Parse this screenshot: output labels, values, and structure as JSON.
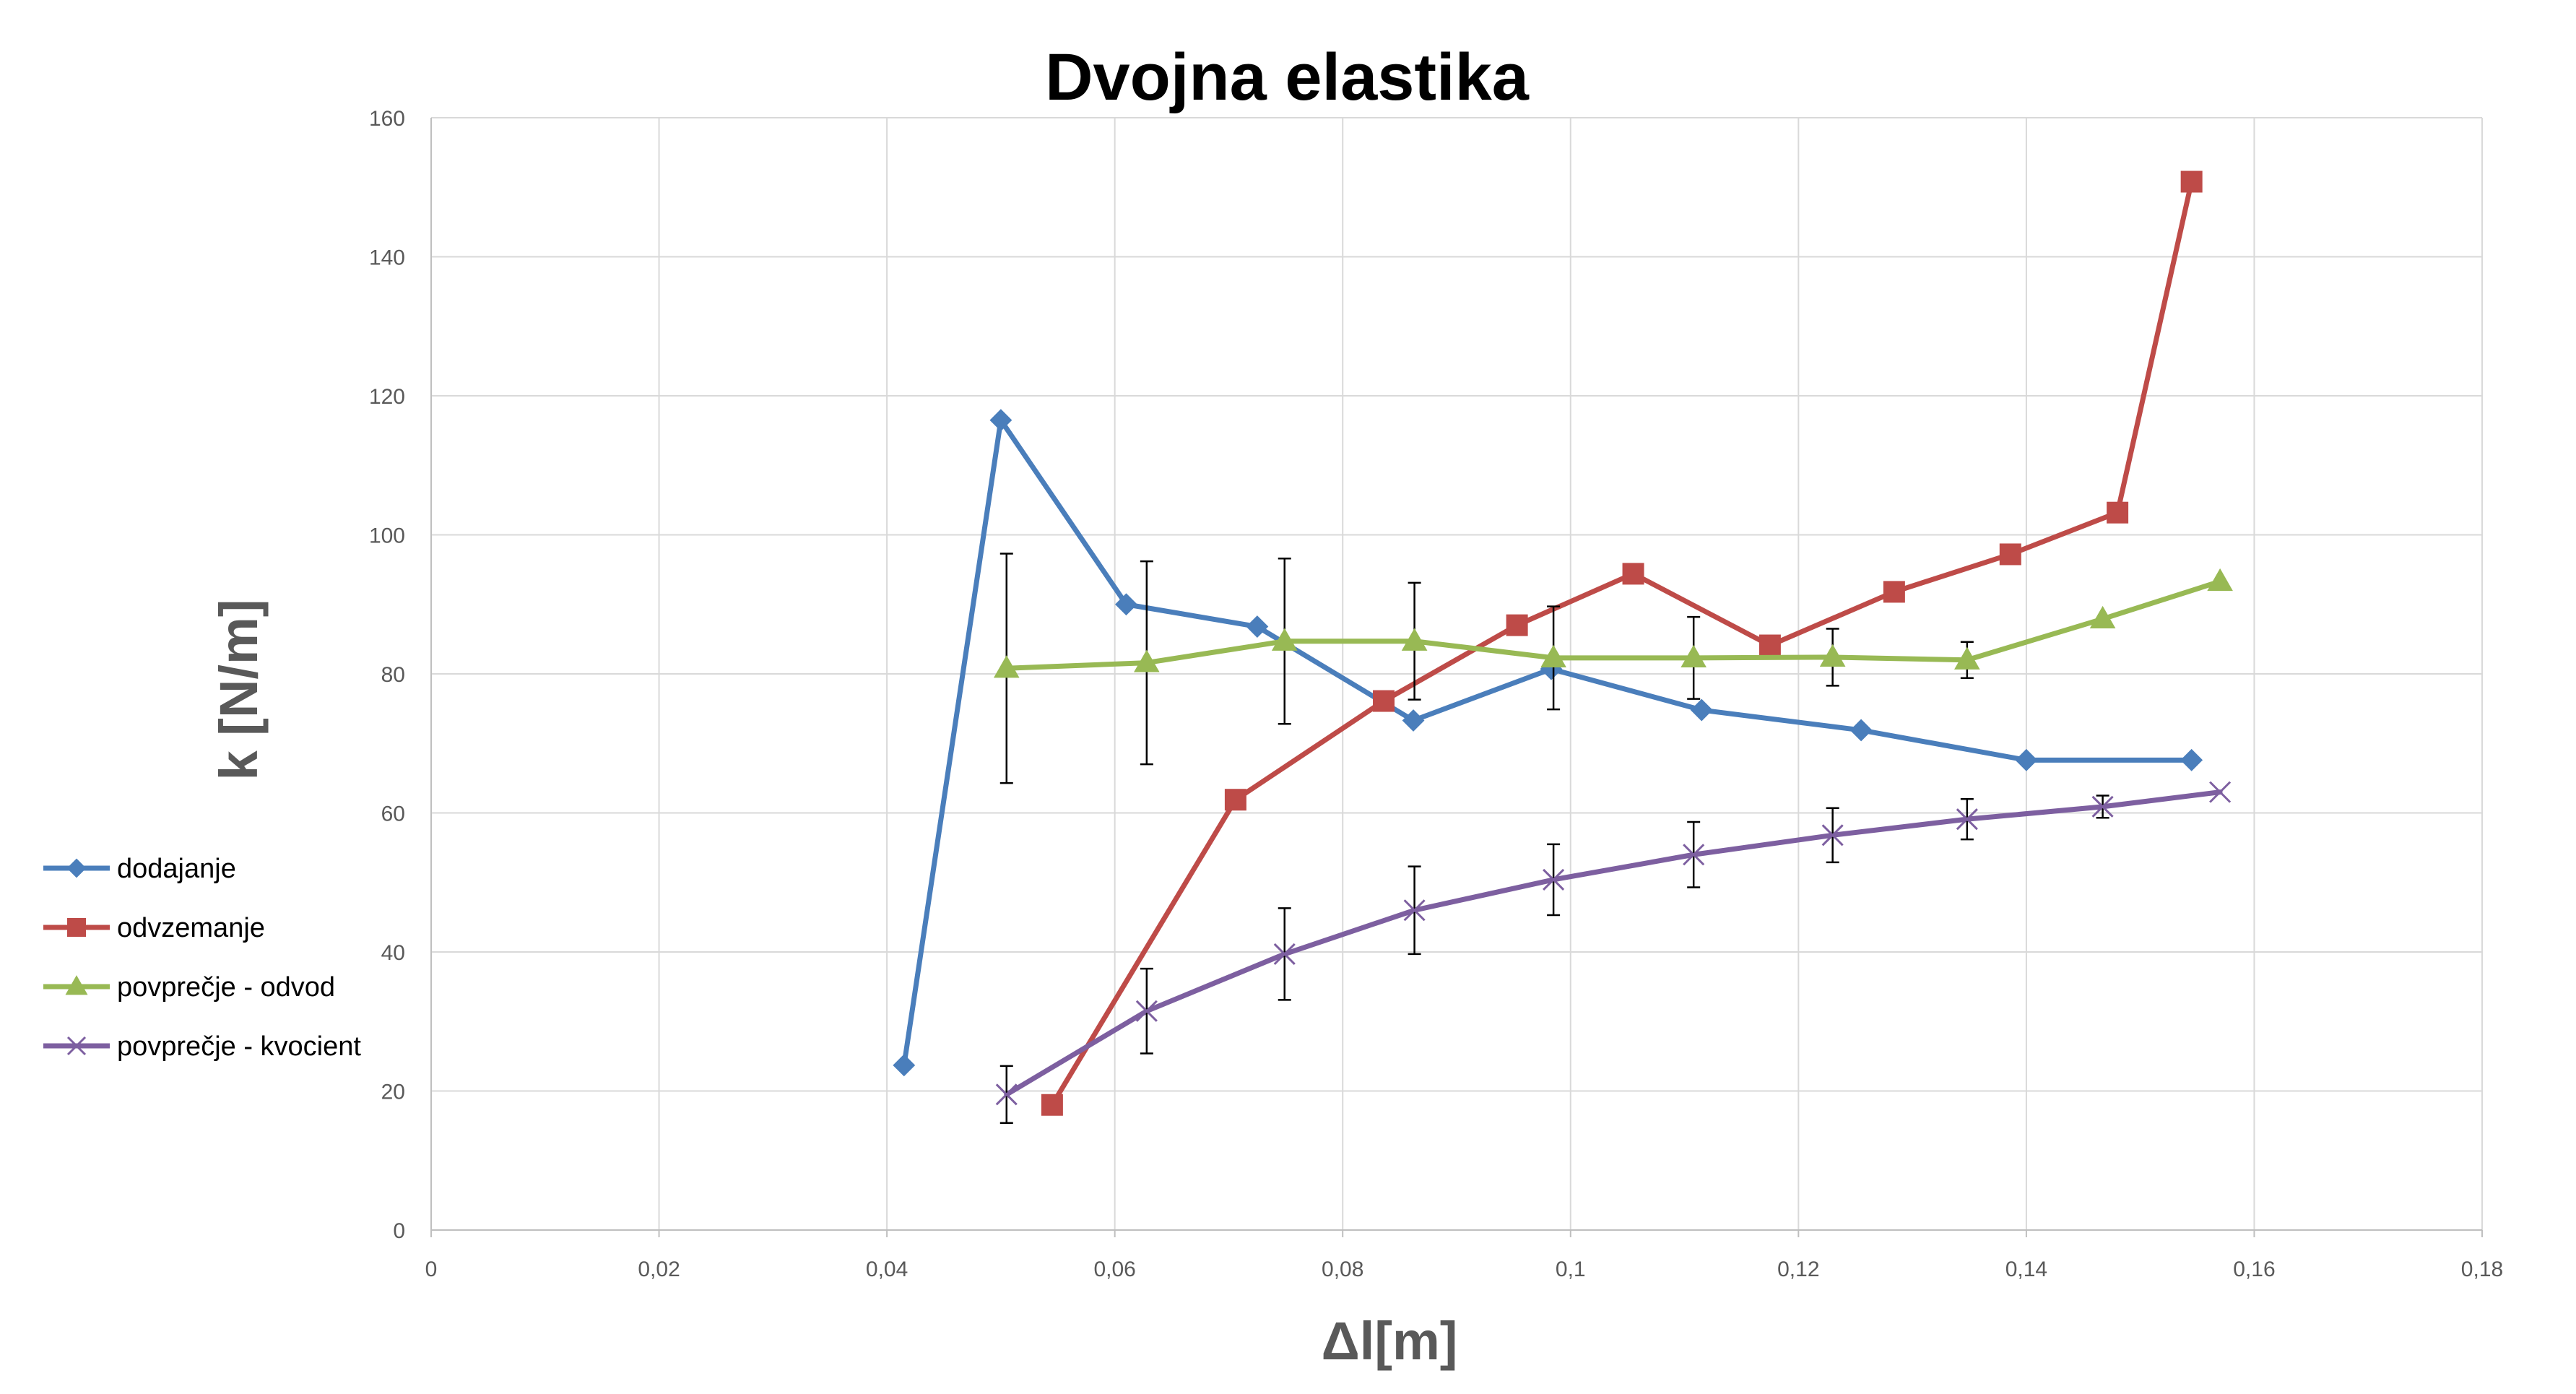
{
  "chart_data": {
    "type": "scatter",
    "title": "Dvojna elastika",
    "xlabel": "Δl[m]",
    "ylabel": "k [N/m]",
    "xlim": [
      0,
      0.18
    ],
    "ylim": [
      0,
      160
    ],
    "x_ticks": [
      0,
      0.02,
      0.04,
      0.06,
      0.08,
      0.1,
      0.12,
      0.14,
      0.16,
      0.18
    ],
    "x_tick_labels": [
      "0",
      "0,02",
      "0,04",
      "0,06",
      "0,08",
      "0,1",
      "0,12",
      "0,14",
      "0,16",
      "0,18"
    ],
    "y_ticks": [
      0,
      20,
      40,
      60,
      80,
      100,
      120,
      140,
      160
    ],
    "y_tick_labels": [
      "0",
      "20",
      "40",
      "60",
      "80",
      "100",
      "120",
      "140",
      "160"
    ],
    "grid": true,
    "legend_position": "left",
    "series": [
      {
        "name": "dodajanje",
        "color": "#4a7ebb",
        "marker": "diamond",
        "x": [
          0.0415,
          0.05,
          0.061,
          0.0725,
          0.0862,
          0.0983,
          0.1115,
          0.1255,
          0.14,
          0.1545
        ],
        "y": [
          23.7,
          116.5,
          90.0,
          86.8,
          73.3,
          80.7,
          74.8,
          71.9,
          67.6,
          67.6
        ]
      },
      {
        "name": "odvzemanje",
        "color": "#be4b48",
        "marker": "square",
        "x": [
          0.0545,
          0.0706,
          0.0836,
          0.0953,
          0.1055,
          0.1175,
          0.1284,
          0.1386,
          0.148,
          0.1545
        ],
        "y": [
          18.0,
          61.9,
          76.1,
          87.0,
          94.4,
          84.1,
          91.8,
          97.2,
          103.2,
          150.8
        ]
      },
      {
        "name": "povprečje - odvod",
        "color": "#98b954",
        "marker": "triangle",
        "x": [
          0.0505,
          0.0628,
          0.0749,
          0.0863,
          0.0985,
          0.1108,
          0.123,
          0.1348,
          0.1467,
          0.157
        ],
        "y": [
          80.8,
          81.6,
          84.7,
          84.7,
          82.3,
          82.3,
          82.4,
          82.0,
          87.9,
          93.3
        ],
        "error": [
          16.5,
          14.6,
          11.9,
          8.4,
          7.4,
          5.9,
          4.1,
          2.6,
          null,
          null
        ]
      },
      {
        "name": "povprečje - kvocient",
        "color": "#7d5fa0",
        "marker": "x",
        "x": [
          0.0505,
          0.0628,
          0.0749,
          0.0863,
          0.0985,
          0.1108,
          0.123,
          0.1348,
          0.1467,
          0.157
        ],
        "y": [
          19.5,
          31.5,
          39.7,
          46.0,
          50.4,
          54.0,
          56.8,
          59.1,
          60.9,
          63.0
        ],
        "error": [
          4.1,
          6.1,
          6.6,
          6.3,
          5.1,
          4.7,
          3.9,
          2.9,
          1.6,
          null
        ]
      }
    ]
  }
}
